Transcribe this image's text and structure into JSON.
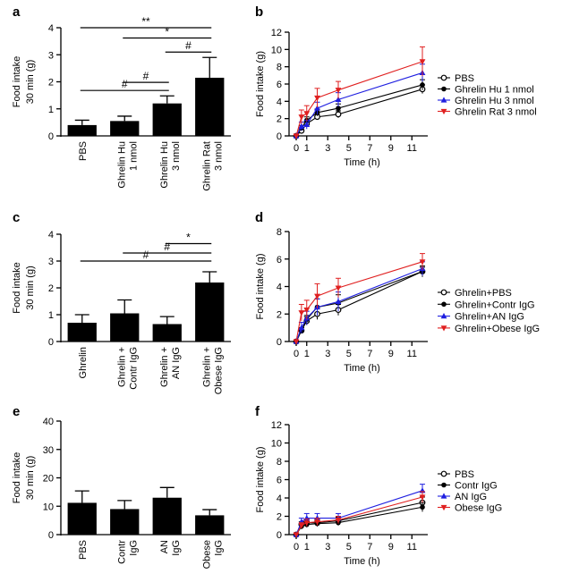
{
  "colors": {
    "black": "#000000",
    "blue": "#1f1fe0",
    "red": "#e02020"
  },
  "chart_data": [
    {
      "panel": "a",
      "type": "bar",
      "ylabel": [
        "Food intake",
        "30 min (g)"
      ],
      "ylim": [
        0,
        4
      ],
      "yticks": [
        0,
        1,
        2,
        3,
        4
      ],
      "categories": [
        [
          "PBS"
        ],
        [
          "Ghrelin Hu",
          "1 nmol"
        ],
        [
          "Ghrelin Hu",
          "3 nmol"
        ],
        [
          "Ghrelin Rat",
          "3 nmol"
        ]
      ],
      "values": [
        0.4,
        0.55,
        1.2,
        2.15
      ],
      "errors": [
        0.18,
        0.18,
        0.28,
        0.75
      ],
      "significance": [
        {
          "from": 0,
          "to": 3,
          "level": 4.0,
          "label": "**"
        },
        {
          "from": 1,
          "to": 3,
          "level": 3.62,
          "label": "*"
        },
        {
          "from": 2,
          "to": 3,
          "level": 3.1,
          "label": "#"
        },
        {
          "from": 0,
          "to": 2,
          "level": 1.68,
          "label": "#"
        },
        {
          "from": 1,
          "to": 2,
          "level": 1.98,
          "label": "#"
        }
      ]
    },
    {
      "panel": "b",
      "type": "line",
      "xlabel": "Time (h)",
      "ylabel": "Food intake (g)",
      "xlim": [
        0,
        12
      ],
      "xticks": [
        0,
        1,
        3,
        5,
        7,
        9,
        11
      ],
      "ylim": [
        0,
        12
      ],
      "yticks": [
        0,
        2,
        4,
        6,
        8,
        10,
        12
      ],
      "x": [
        0,
        0.5,
        1,
        2,
        4,
        12
      ],
      "series": [
        {
          "name": "PBS",
          "color": "#000000",
          "marker": "open-circle",
          "values": [
            0,
            0.6,
            1.4,
            2.2,
            2.5,
            5.4
          ],
          "errors": [
            0.1,
            0.3,
            0.3,
            0.3,
            0.4,
            0.5
          ]
        },
        {
          "name": "Ghrelin Hu 1 nmol",
          "color": "#000000",
          "marker": "filled-circle",
          "values": [
            0,
            0.9,
            1.8,
            2.7,
            3.2,
            5.9
          ],
          "errors": [
            0.1,
            0.3,
            0.4,
            0.4,
            0.5,
            0.6
          ]
        },
        {
          "name": "Ghrelin Hu 3 nmol",
          "color": "#1f1fe0",
          "marker": "triangle-up",
          "values": [
            0,
            1.1,
            1.3,
            3.2,
            4.2,
            7.3
          ],
          "errors": [
            0.1,
            0.5,
            0.5,
            0.7,
            0.8,
            1.0
          ]
        },
        {
          "name": "Ghrelin Rat 3 nmol",
          "color": "#e02020",
          "marker": "triangle-down",
          "values": [
            0,
            2.2,
            2.6,
            4.4,
            5.3,
            8.6
          ],
          "errors": [
            0.1,
            0.8,
            0.9,
            1.1,
            1.0,
            1.7
          ]
        }
      ]
    },
    {
      "panel": "c",
      "type": "bar",
      "ylabel": [
        "Food intake",
        "30 min (g)"
      ],
      "ylim": [
        0,
        4
      ],
      "yticks": [
        0,
        1,
        2,
        3,
        4
      ],
      "categories": [
        [
          "Ghrelin"
        ],
        [
          "Ghrelin +",
          "Contr IgG"
        ],
        [
          "Ghrelin +",
          "AN IgG"
        ],
        [
          "Ghrelin +",
          "Obese IgG"
        ]
      ],
      "values": [
        0.7,
        1.05,
        0.65,
        2.2
      ],
      "errors": [
        0.3,
        0.5,
        0.28,
        0.4
      ],
      "significance": [
        {
          "from": 0,
          "to": 3,
          "level": 3.0,
          "label": "#"
        },
        {
          "from": 1,
          "to": 3,
          "level": 3.3,
          "label": "#"
        },
        {
          "from": 2,
          "to": 3,
          "level": 3.65,
          "label": "*"
        }
      ]
    },
    {
      "panel": "d",
      "type": "line",
      "xlabel": "Time (h)",
      "ylabel": "Food intake (g)",
      "xlim": [
        0,
        12
      ],
      "xticks": [
        0,
        1,
        3,
        5,
        7,
        9,
        11
      ],
      "ylim": [
        0,
        8
      ],
      "yticks": [
        0,
        2,
        4,
        6,
        8
      ],
      "x": [
        0,
        0.5,
        1,
        2,
        4,
        12
      ],
      "series": [
        {
          "name": "Ghrelin+PBS",
          "color": "#000000",
          "marker": "open-circle",
          "values": [
            0,
            0.8,
            1.5,
            2.0,
            2.3,
            5.1
          ],
          "errors": [
            0.1,
            0.2,
            0.3,
            0.4,
            0.4,
            0.3
          ]
        },
        {
          "name": "Ghrelin+Contr IgG",
          "color": "#000000",
          "marker": "filled-circle",
          "values": [
            0,
            0.8,
            1.6,
            2.5,
            2.8,
            5.1
          ],
          "errors": [
            0.1,
            0.2,
            0.3,
            0.6,
            0.6,
            0.4
          ]
        },
        {
          "name": "Ghrelin+AN IgG",
          "color": "#1f1fe0",
          "marker": "triangle-up",
          "values": [
            0,
            1.0,
            1.7,
            2.5,
            2.9,
            5.3
          ],
          "errors": [
            0.1,
            0.4,
            0.5,
            0.6,
            0.7,
            0.5
          ]
        },
        {
          "name": "Ghrelin+Obese IgG",
          "color": "#e02020",
          "marker": "triangle-down",
          "values": [
            0,
            2.1,
            2.3,
            3.3,
            3.9,
            5.8
          ],
          "errors": [
            0.1,
            0.6,
            0.7,
            0.9,
            0.7,
            0.6
          ]
        }
      ]
    },
    {
      "panel": "e",
      "type": "bar",
      "ylabel": [
        "Food intake",
        "30 min (g)"
      ],
      "ylim": [
        0,
        40
      ],
      "yticks": [
        0,
        10,
        20,
        30,
        40
      ],
      "categories": [
        [
          "PBS"
        ],
        [
          "Contr",
          "IgG"
        ],
        [
          "AN",
          "IgG"
        ],
        [
          "Obese",
          "IgG"
        ]
      ],
      "values": [
        11.2,
        9.0,
        13.0,
        6.8
      ],
      "errors": [
        4.2,
        3.0,
        3.6,
        2.0
      ],
      "significance": []
    },
    {
      "panel": "f",
      "type": "line",
      "xlabel": "Time (h)",
      "ylabel": "Food intake (g)",
      "xlim": [
        0,
        12
      ],
      "xticks": [
        0,
        1,
        3,
        5,
        7,
        9,
        11
      ],
      "ylim": [
        0,
        12
      ],
      "yticks": [
        0,
        2,
        4,
        6,
        8,
        10,
        12
      ],
      "x": [
        0,
        0.5,
        1,
        2,
        4,
        12
      ],
      "series": [
        {
          "name": "PBS",
          "color": "#000000",
          "marker": "open-circle",
          "values": [
            0,
            1.1,
            1.3,
            1.3,
            1.5,
            3.5
          ],
          "errors": [
            0.1,
            0.3,
            0.4,
            0.4,
            0.4,
            0.6
          ]
        },
        {
          "name": "Contr IgG",
          "color": "#000000",
          "marker": "filled-circle",
          "values": [
            0,
            0.9,
            1.1,
            1.2,
            1.3,
            3.0
          ],
          "errors": [
            0.1,
            0.3,
            0.3,
            0.3,
            0.3,
            0.5
          ]
        },
        {
          "name": "AN IgG",
          "color": "#1f1fe0",
          "marker": "triangle-up",
          "values": [
            0,
            1.4,
            1.8,
            1.8,
            1.8,
            4.8
          ],
          "errors": [
            0.1,
            0.4,
            0.5,
            0.5,
            0.5,
            0.7
          ]
        },
        {
          "name": "Obese IgG",
          "color": "#e02020",
          "marker": "triangle-down",
          "values": [
            0,
            1.0,
            1.3,
            1.4,
            1.6,
            4.1
          ],
          "errors": [
            0.1,
            0.3,
            0.4,
            0.4,
            0.4,
            0.6
          ]
        }
      ]
    }
  ]
}
